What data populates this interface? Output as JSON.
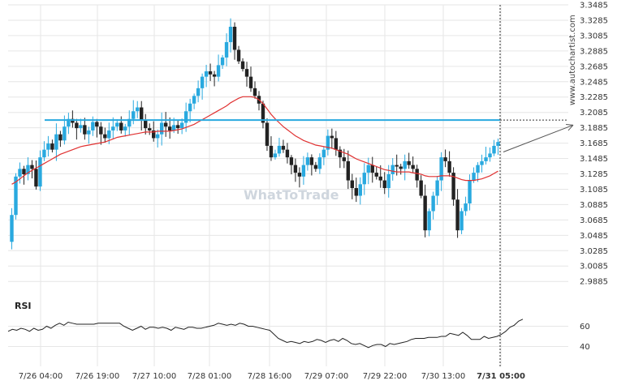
{
  "brand": "www.autochartist.com",
  "watermark": "WhatToTrade",
  "colors": {
    "bull": "#29a9df",
    "bear": "#222222",
    "ma": "#e03131",
    "level": "#29a9df",
    "rsi": "#222222",
    "grid": "#e6e6e6",
    "forecast": "#555555"
  },
  "chart_data": {
    "type": "candlestick",
    "title": "",
    "xlabel": "",
    "ylabel": "",
    "ylim": [
      2.975,
      3.3485
    ],
    "y_ticks": [
      "3.3485",
      "3.3285",
      "3.3085",
      "3.2885",
      "3.2685",
      "3.2485",
      "3.2285",
      "3.2085",
      "3.1885",
      "3.1685",
      "3.1485",
      "3.1285",
      "3.1085",
      "3.0885",
      "3.0685",
      "3.0485",
      "3.0285",
      "3.0085",
      "2.9885"
    ],
    "x_ticks": [
      "7/26 04:00",
      "7/26 19:00",
      "7/27 10:00",
      "7/28 01:00",
      "7/28 16:00",
      "7/29 07:00",
      "7/29 22:00",
      "7/30 13:00",
      "7/31 05:00"
    ],
    "current_time_label": "7/31 05:00",
    "candles_close": [
      3.075,
      3.125,
      3.135,
      3.128,
      3.14,
      3.135,
      3.112,
      3.15,
      3.16,
      3.168,
      3.16,
      3.18,
      3.172,
      3.19,
      3.2,
      3.195,
      3.188,
      3.192,
      3.18,
      3.185,
      3.196,
      3.19,
      3.18,
      3.175,
      3.185,
      3.19,
      3.195,
      3.185,
      3.19,
      3.2,
      3.21,
      3.215,
      3.198,
      3.188,
      3.185,
      3.175,
      3.18,
      3.195,
      3.19,
      3.185,
      3.192,
      3.188,
      3.195,
      3.21,
      3.22,
      3.23,
      3.24,
      3.255,
      3.262,
      3.258,
      3.255,
      3.27,
      3.28,
      3.3,
      3.32,
      3.29,
      3.275,
      3.265,
      3.255,
      3.24,
      3.23,
      3.22,
      3.195,
      3.165,
      3.15,
      3.155,
      3.165,
      3.16,
      3.15,
      3.14,
      3.13,
      3.125,
      3.14,
      3.15,
      3.14,
      3.135,
      3.15,
      3.16,
      3.178,
      3.175,
      3.16,
      3.15,
      3.145,
      3.12,
      3.11,
      3.1,
      3.115,
      3.13,
      3.14,
      3.13,
      3.125,
      3.12,
      3.11,
      3.128,
      3.14,
      3.138,
      3.135,
      3.145,
      3.14,
      3.135,
      3.12,
      3.1,
      3.055,
      3.08,
      3.1,
      3.12,
      3.15,
      3.145,
      3.13,
      3.095,
      3.055,
      3.08,
      3.09,
      3.12,
      3.13,
      3.14,
      3.145,
      3.15,
      3.155,
      3.165,
      3.17
    ],
    "moving_average": [
      3.115,
      3.118,
      3.122,
      3.126,
      3.13,
      3.133,
      3.136,
      3.139,
      3.142,
      3.145,
      3.148,
      3.151,
      3.154,
      3.156,
      3.158,
      3.16,
      3.162,
      3.164,
      3.165,
      3.166,
      3.167,
      3.168,
      3.169,
      3.17,
      3.172,
      3.174,
      3.176,
      3.177,
      3.178,
      3.179,
      3.18,
      3.181,
      3.182,
      3.183,
      3.183,
      3.183,
      3.184,
      3.184,
      3.184,
      3.184,
      3.185,
      3.186,
      3.187,
      3.189,
      3.191,
      3.193,
      3.196,
      3.199,
      3.202,
      3.205,
      3.208,
      3.211,
      3.214,
      3.217,
      3.221,
      3.224,
      3.227,
      3.229,
      3.229,
      3.229,
      3.228,
      3.225,
      3.22,
      3.213,
      3.206,
      3.2,
      3.195,
      3.19,
      3.186,
      3.182,
      3.178,
      3.175,
      3.172,
      3.17,
      3.168,
      3.166,
      3.165,
      3.164,
      3.163,
      3.162,
      3.16,
      3.158,
      3.156,
      3.154,
      3.151,
      3.148,
      3.146,
      3.144,
      3.142,
      3.14,
      3.138,
      3.136,
      3.134,
      3.133,
      3.132,
      3.131,
      3.131,
      3.131,
      3.131,
      3.13,
      3.129,
      3.128,
      3.126,
      3.125,
      3.125,
      3.125,
      3.126,
      3.126,
      3.126,
      3.125,
      3.123,
      3.121,
      3.12,
      3.12,
      3.12,
      3.121,
      3.122,
      3.124,
      3.126,
      3.129,
      3.132
    ],
    "horizontal_level": 3.1985,
    "forecast": {
      "from": 3.157,
      "to": 3.192
    },
    "rsi": {
      "label": "RSI",
      "ticks": [
        60,
        40
      ],
      "range": [
        30,
        70
      ],
      "values": [
        55,
        57,
        56,
        58,
        57,
        55,
        58,
        56,
        57,
        60,
        58,
        61,
        63,
        61,
        64,
        63,
        62,
        62,
        62,
        62,
        62,
        63,
        63,
        63,
        63,
        63,
        63,
        60,
        58,
        56,
        58,
        60,
        57,
        59,
        59,
        58,
        59,
        58,
        56,
        59,
        58,
        57,
        59,
        59,
        58,
        58,
        59,
        60,
        61,
        63,
        62,
        61,
        62,
        61,
        63,
        62,
        60,
        60,
        59,
        58,
        57,
        56,
        52,
        48,
        46,
        44,
        45,
        44,
        43,
        45,
        44,
        45,
        47,
        46,
        44,
        46,
        47,
        45,
        48,
        46,
        43,
        42,
        43,
        41,
        39,
        41,
        42,
        42,
        40,
        43,
        42,
        43,
        44,
        45,
        47,
        48,
        48,
        48,
        49,
        49,
        49,
        50,
        50,
        53,
        52,
        51,
        54,
        51,
        47,
        47,
        47,
        50,
        48,
        49,
        50,
        52,
        55,
        59,
        61,
        65,
        67
      ]
    }
  }
}
